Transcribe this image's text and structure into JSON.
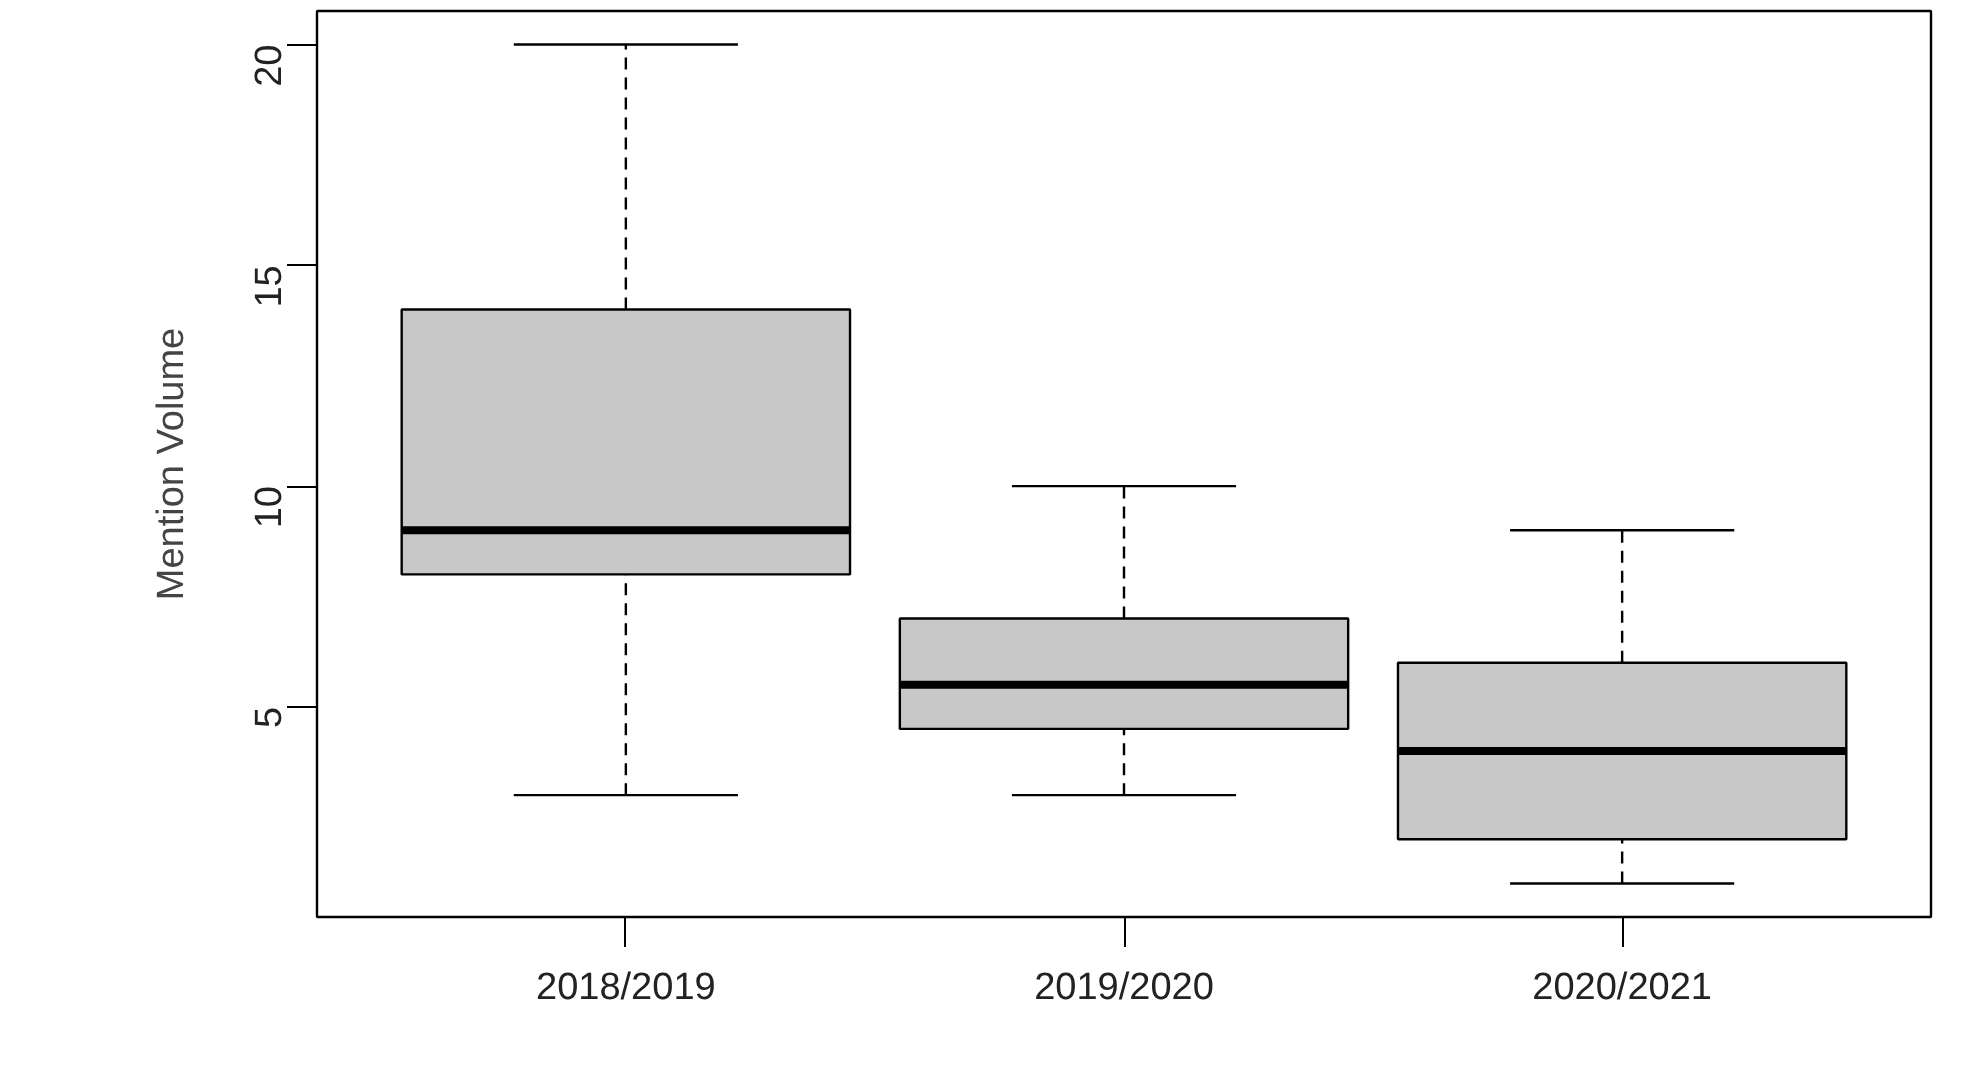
{
  "chart_data": {
    "type": "box",
    "ylabel": "Mention Volume",
    "categories": [
      "2018/2019",
      "2019/2020",
      "2020/2021"
    ],
    "series": [
      {
        "color": "#c8c8c8",
        "boxes": [
          {
            "low": 3,
            "q1": 8,
            "median": 9,
            "q3": 14,
            "high": 20
          },
          {
            "low": 3,
            "q1": 4.5,
            "median": 5.5,
            "q3": 7,
            "high": 10
          },
          {
            "low": 1,
            "q1": 2,
            "median": 4,
            "q3": 6,
            "high": 9
          }
        ]
      }
    ],
    "ylim": [
      0.24,
      20.76
    ],
    "yticks": [
      5,
      10,
      15,
      20
    ]
  }
}
